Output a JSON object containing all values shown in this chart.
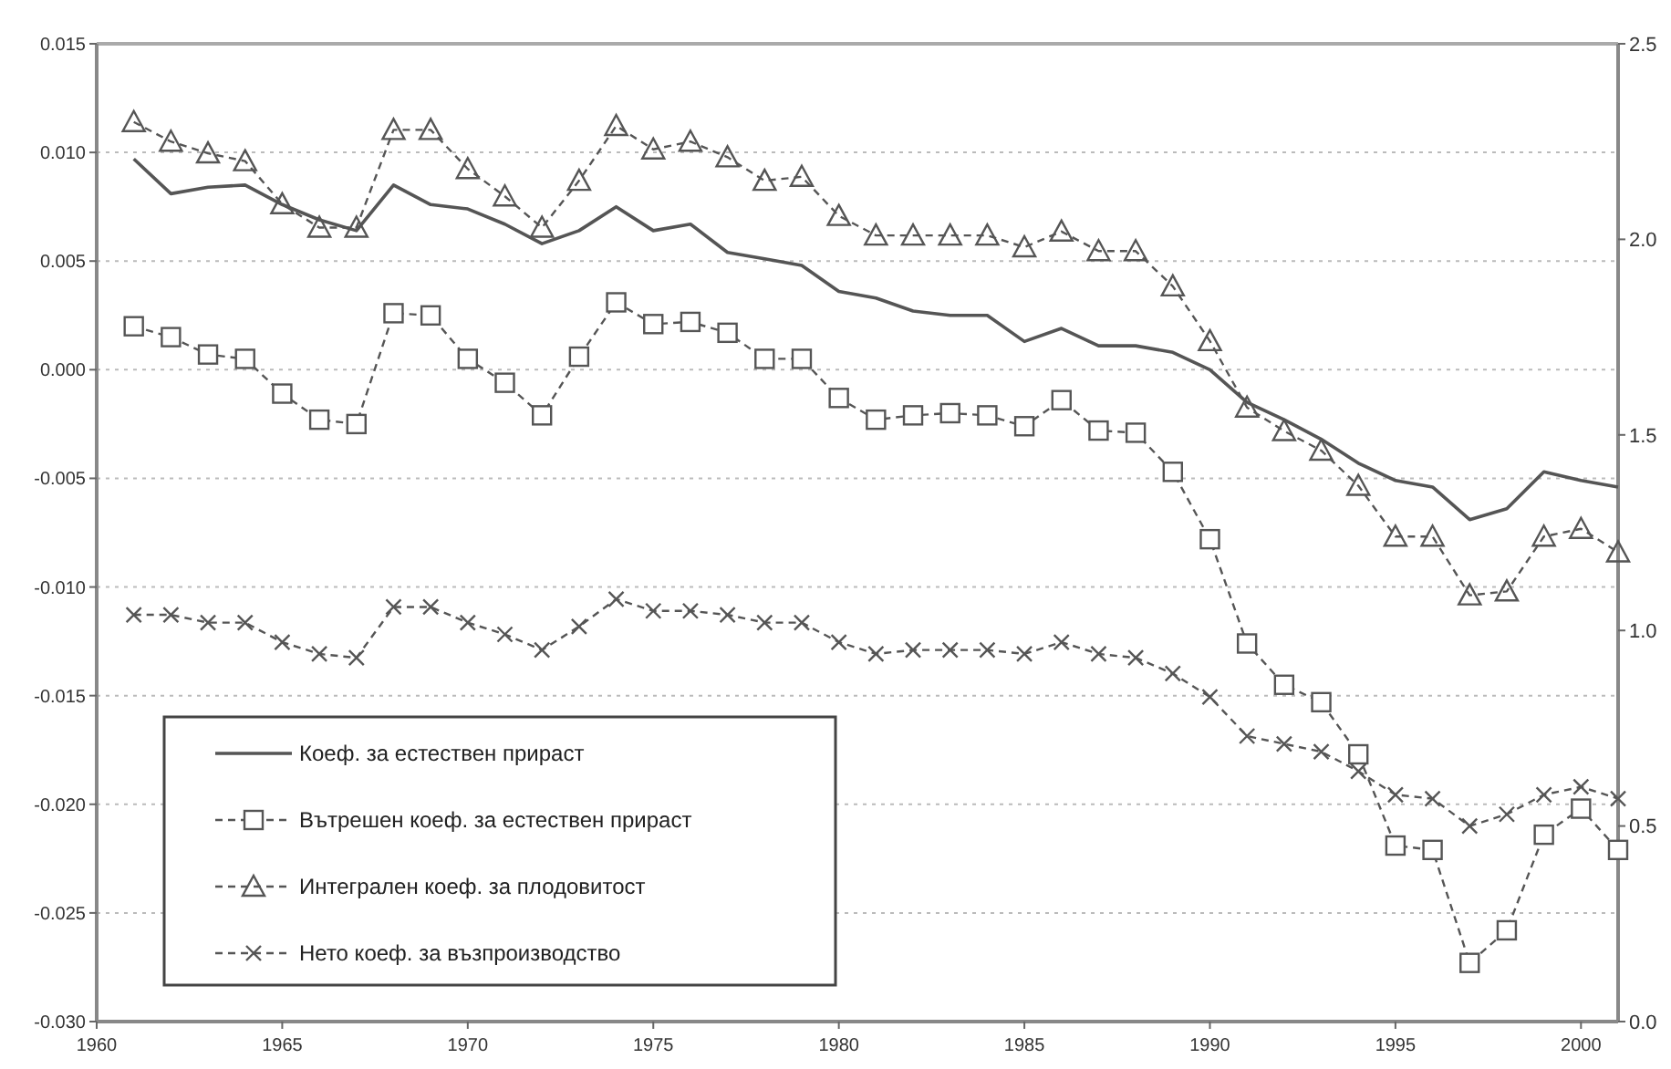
{
  "chart_data": {
    "type": "line",
    "x": [
      1961,
      1962,
      1963,
      1964,
      1965,
      1966,
      1967,
      1968,
      1969,
      1970,
      1971,
      1972,
      1973,
      1974,
      1975,
      1976,
      1977,
      1978,
      1979,
      1980,
      1981,
      1982,
      1983,
      1984,
      1985,
      1986,
      1987,
      1988,
      1989,
      1990,
      1991,
      1992,
      1993,
      1994,
      1995,
      1996,
      1997,
      1998,
      1999,
      2000,
      2001
    ],
    "xlim": [
      1960,
      2001
    ],
    "xticks": [
      1960,
      1965,
      1970,
      1975,
      1980,
      1985,
      1990,
      1995,
      2000
    ],
    "ylim": [
      -0.03,
      0.015
    ],
    "yticks": [
      {
        "value": -0.03,
        "label": "-0.030"
      },
      {
        "value": -0.025,
        "label": "-0.025"
      },
      {
        "value": -0.02,
        "label": "-0.020"
      },
      {
        "value": -0.015,
        "label": "-0.015"
      },
      {
        "value": -0.01,
        "label": "-0.010"
      },
      {
        "value": -0.005,
        "label": "-0.005"
      },
      {
        "value": 0,
        "label": "0.000"
      },
      {
        "value": 0.005,
        "label": "0.005"
      },
      {
        "value": 0.01,
        "label": "0.010"
      },
      {
        "value": 0.015,
        "label": "0.015"
      }
    ],
    "y2lim": [
      0,
      2.5
    ],
    "y2ticks": [
      {
        "value": 0,
        "label": "0.0"
      },
      {
        "value": 0.5,
        "label": "0.5"
      },
      {
        "value": 1,
        "label": "1.0"
      },
      {
        "value": 1.5,
        "label": "1.5"
      },
      {
        "value": 2,
        "label": "2.0"
      },
      {
        "value": 2.5,
        "label": "2.5"
      }
    ],
    "grid": "y",
    "legend": "bottom left",
    "series": [
      {
        "name": "Коеф. за естествен прираст",
        "color": "#555555",
        "marker": "none",
        "line_style": "solid",
        "values": [
          0.0097,
          0.0081,
          0.0084,
          0.0085,
          0.0076,
          0.0069,
          0.0064,
          0.0085,
          0.0076,
          0.0074,
          0.0067,
          0.0058,
          0.0064,
          0.0075,
          0.0064,
          0.0067,
          0.0054,
          0.0051,
          0.0048,
          0.0036,
          0.0033,
          0.0027,
          0.0025,
          0.0025,
          0.0013,
          0.0019,
          0.0011,
          0.0011,
          0.0008,
          0.0,
          -0.0015,
          -0.0023,
          -0.0032,
          -0.0043,
          -0.0051,
          -0.0054,
          -0.0069,
          -0.0064,
          -0.0047,
          -0.0051,
          -0.0054
        ]
      },
      {
        "name": "Вътрешен коеф. за естествен прираст",
        "color": "#555555",
        "marker": "square",
        "line_style": "dashed",
        "values": [
          0.002,
          0.0015,
          0.0007,
          0.0005,
          -0.0011,
          -0.0023,
          -0.0025,
          0.0026,
          0.0025,
          0.0005,
          -0.0006,
          -0.0021,
          0.0006,
          0.0031,
          0.0021,
          0.0022,
          0.0017,
          0.0005,
          0.0005,
          -0.0013,
          -0.0023,
          -0.0021,
          -0.002,
          -0.0021,
          -0.0026,
          -0.0014,
          -0.0028,
          -0.0029,
          -0.0047,
          -0.0078,
          -0.0126,
          -0.0145,
          -0.0153,
          -0.0177,
          -0.0219,
          -0.0221,
          -0.0273,
          -0.0258,
          -0.0214,
          -0.0202,
          -0.0221
        ]
      },
      {
        "name": "Интегрален коеф. за плодовитост",
        "color": "#555555",
        "marker": "triangle",
        "line_style": "dashed",
        "axis": "y2",
        "values": [
          2.3,
          2.25,
          2.22,
          2.2,
          2.09,
          2.03,
          2.03,
          2.28,
          2.28,
          2.18,
          2.11,
          2.03,
          2.15,
          2.29,
          2.23,
          2.25,
          2.21,
          2.15,
          2.16,
          2.06,
          2.01,
          2.01,
          2.01,
          2.01,
          1.98,
          2.02,
          1.97,
          1.97,
          1.88,
          1.74,
          1.57,
          1.51,
          1.46,
          1.37,
          1.24,
          1.24,
          1.09,
          1.1,
          1.24,
          1.26,
          1.2
        ]
      },
      {
        "name": "Нето коеф. за възпроизводство",
        "color": "#555555",
        "marker": "cross",
        "line_style": "dashed",
        "axis": "y2",
        "values": [
          1.04,
          1.04,
          1.02,
          1.02,
          0.97,
          0.94,
          0.93,
          1.06,
          1.06,
          1.02,
          0.99,
          0.95,
          1.01,
          1.08,
          1.05,
          1.05,
          1.04,
          1.02,
          1.02,
          0.97,
          0.94,
          0.95,
          0.95,
          0.95,
          0.94,
          0.97,
          0.94,
          0.93,
          0.89,
          0.83,
          0.73,
          0.71,
          0.69,
          0.64,
          0.58,
          0.57,
          0.5,
          0.53,
          0.58,
          0.6,
          0.57
        ]
      }
    ]
  }
}
